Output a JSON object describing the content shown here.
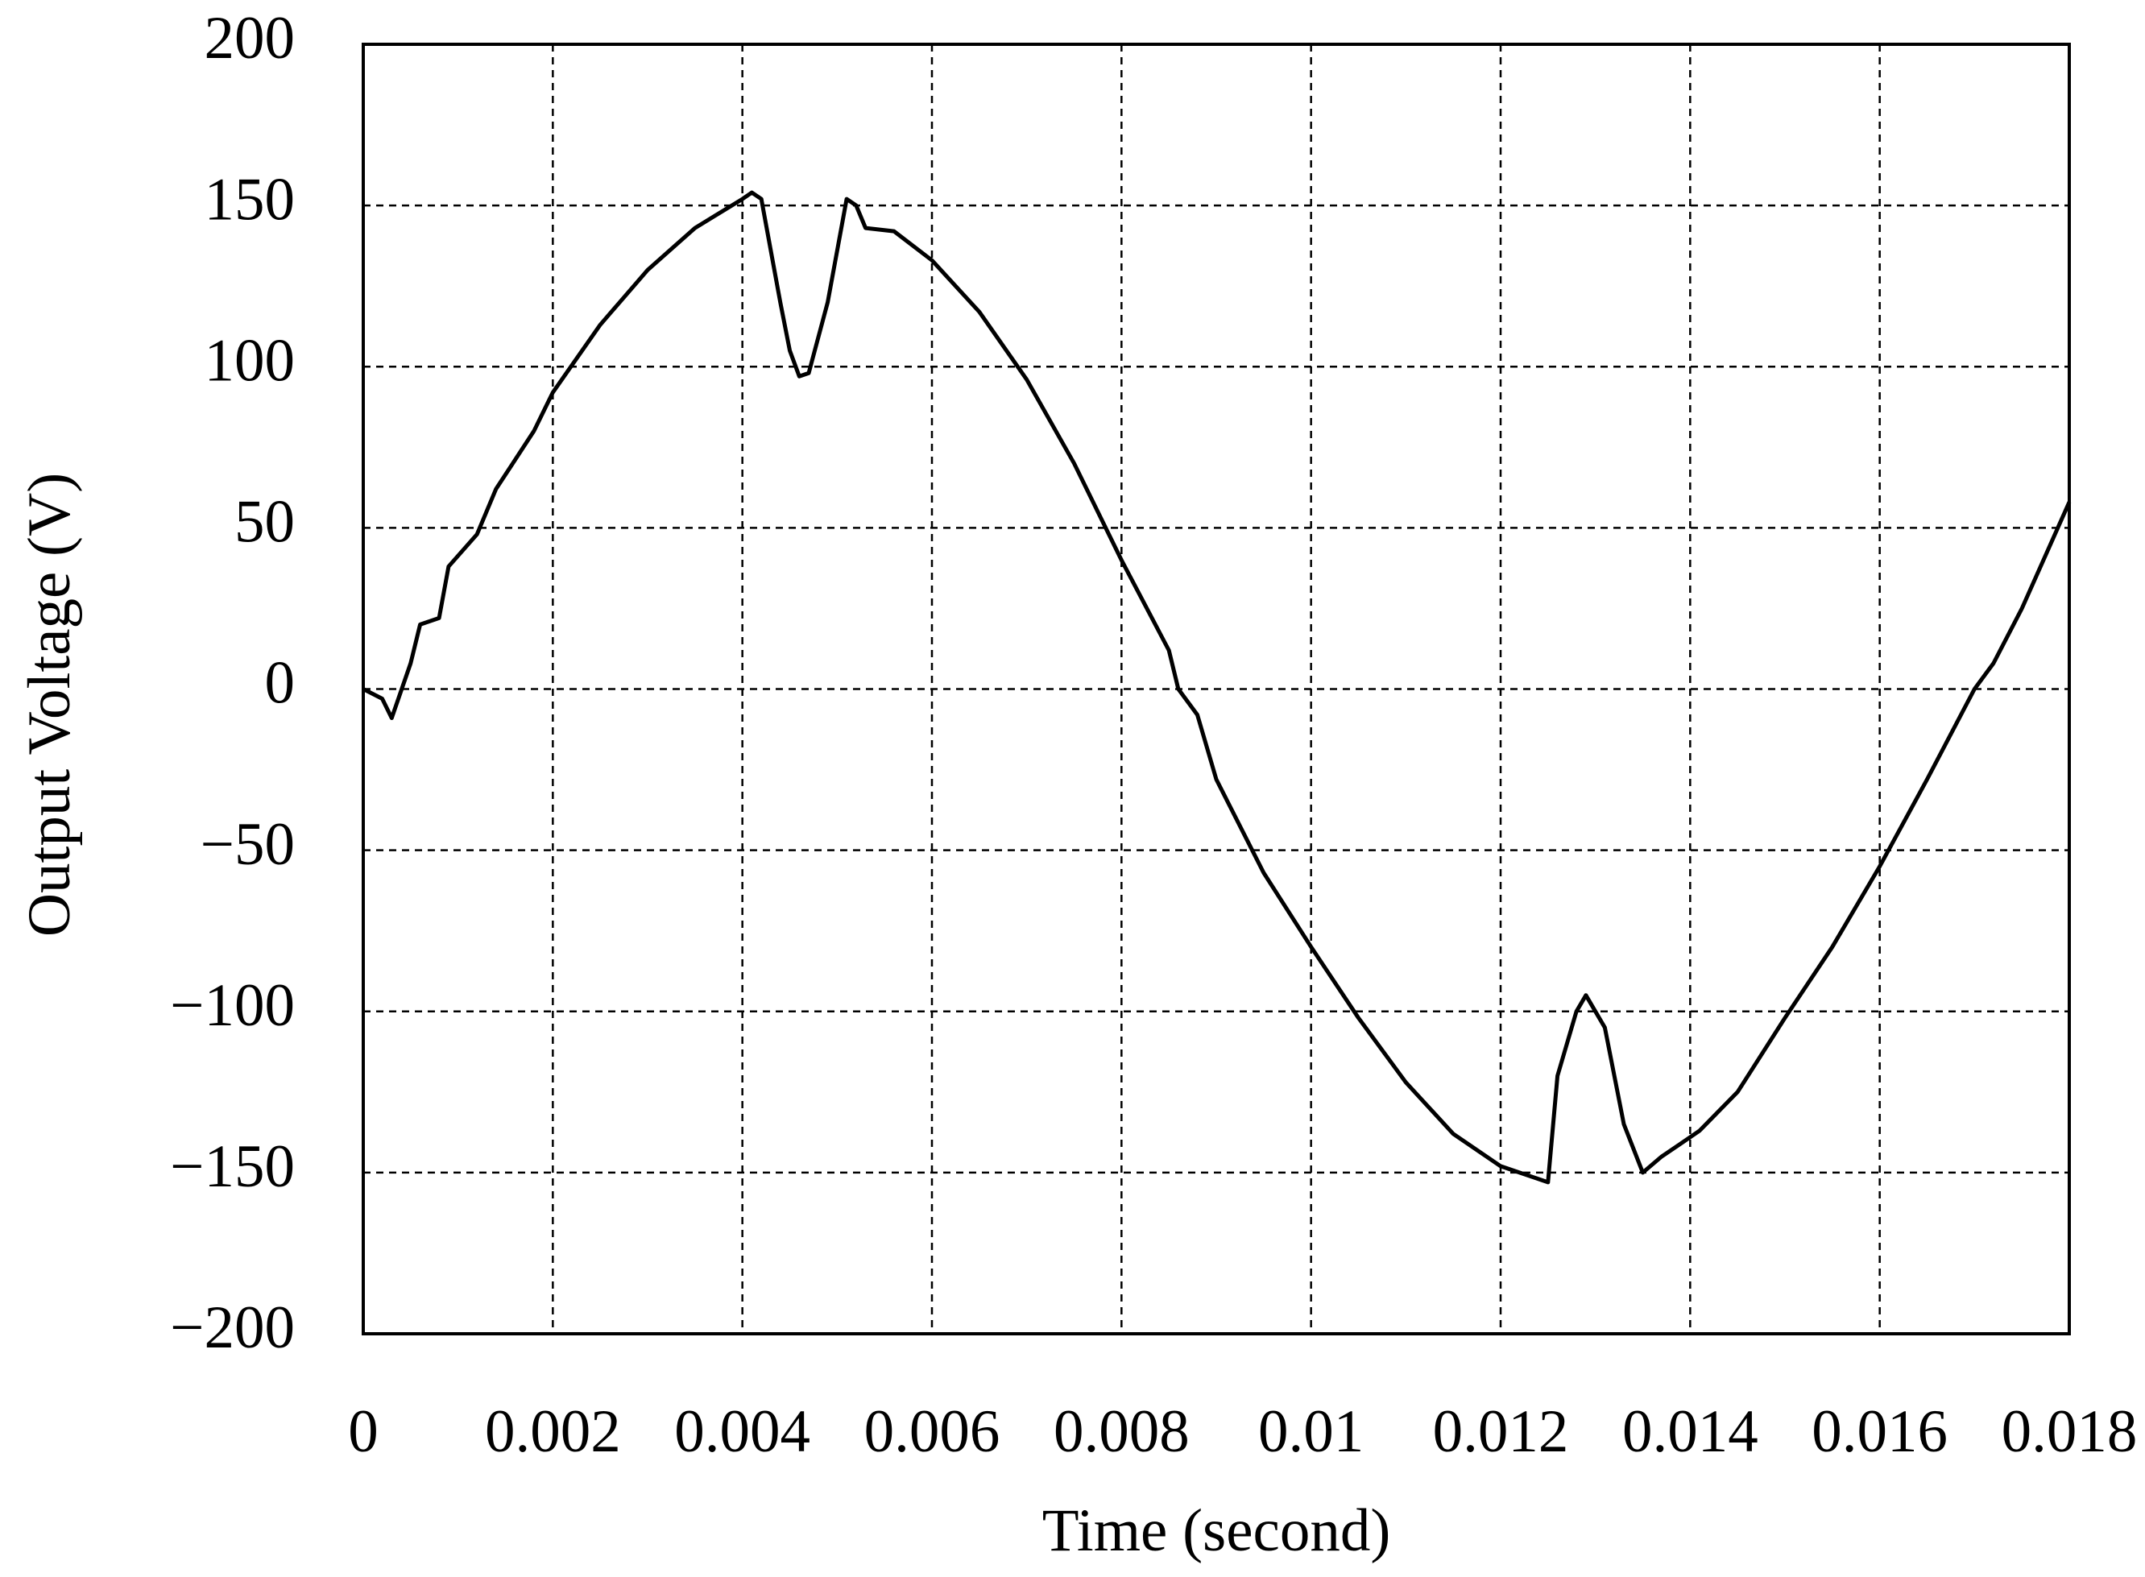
{
  "chart_data": {
    "type": "line",
    "x_label": "Time (second)",
    "y_label": "Output Voltage (V)",
    "xlim": [
      0,
      0.018
    ],
    "ylim": [
      -200,
      200
    ],
    "xticks": [
      0,
      0.002,
      0.004,
      0.006,
      0.008,
      0.01,
      0.012,
      0.014,
      0.016,
      0.018
    ],
    "yticks": [
      {
        "value": -200,
        "label": "−200"
      },
      {
        "value": -150,
        "label": "−150"
      },
      {
        "value": -100,
        "label": "−100"
      },
      {
        "value": -50,
        "label": "−50"
      },
      0,
      50,
      100,
      150,
      200
    ],
    "grid": true,
    "series": [
      {
        "color": "#000000",
        "x": [
          0,
          0.0002,
          0.0003,
          0.0005,
          0.0006,
          0.0008,
          0.0009,
          0.0012,
          0.0014,
          0.0018,
          0.002,
          0.0025,
          0.003,
          0.0035,
          0.004,
          0.0041,
          0.0042,
          0.0044,
          0.0045,
          0.0046,
          0.0047,
          0.0049,
          0.0051,
          0.0052,
          0.0053,
          0.0056,
          0.006,
          0.0065,
          0.007,
          0.0075,
          0.008,
          0.0085,
          0.0086,
          0.0088,
          0.009,
          0.0095,
          0.01,
          0.0105,
          0.011,
          0.0115,
          0.012,
          0.0124,
          0.0125,
          0.0126,
          0.0128,
          0.0129,
          0.0131,
          0.0133,
          0.0135,
          0.0137,
          0.0139,
          0.0141,
          0.0145,
          0.015,
          0.0155,
          0.016,
          0.0165,
          0.017,
          0.0172,
          0.0175,
          0.018
        ],
        "values": [
          0,
          -3,
          -9,
          8,
          20,
          22,
          38,
          48,
          62,
          80,
          92,
          113,
          130,
          143,
          152,
          154,
          152,
          120,
          105,
          97,
          98,
          120,
          152,
          150,
          143,
          142,
          133,
          117,
          96,
          70,
          40,
          12,
          0,
          -8,
          -28,
          -57,
          -80,
          -102,
          -122,
          -138,
          -148,
          -152,
          -153,
          -120,
          -100,
          -95,
          -105,
          -135,
          -150,
          -145,
          -141,
          -137,
          -125,
          -102,
          -80,
          -55,
          -28,
          0,
          8,
          25,
          58
        ]
      }
    ]
  }
}
